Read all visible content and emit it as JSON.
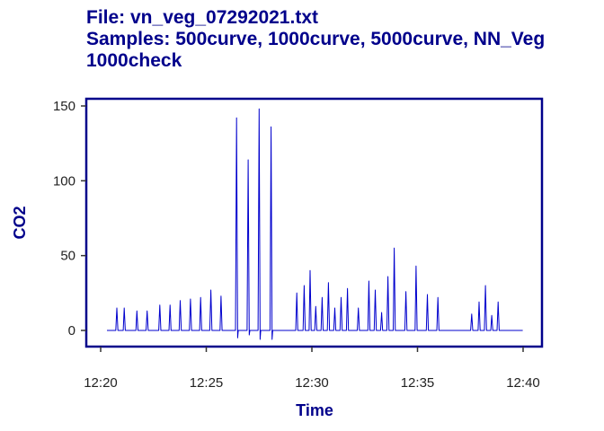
{
  "title": {
    "line1": "File:  vn_veg_07292021.txt",
    "line2": "Samples: 500curve, 1000curve, 5000curve, NN_Veg",
    "line3": "1000check"
  },
  "colors": {
    "title": "#00008b",
    "line": "#0000cd",
    "frame": "#00008b"
  },
  "chart_data": {
    "type": "line",
    "title": "File:  vn_veg_07292021.txt Samples: 500curve, 1000curve, 5000curve, NN_Veg 1000check",
    "xlabel": "Time",
    "ylabel": "CO2",
    "xlim": [
      "12:20",
      "12:40"
    ],
    "ylim": [
      -12,
      152
    ],
    "x_ticks": [
      "12:20",
      "12:25",
      "12:30",
      "12:35",
      "12:40"
    ],
    "y_ticks": [
      0,
      50,
      100,
      150
    ],
    "baseline": 0,
    "grid": false,
    "legend": "none",
    "x_start": "12:20:18",
    "x_end": "12:39:59",
    "peaks": [
      {
        "time": "12:20:46",
        "value": 15
      },
      {
        "time": "12:21:07",
        "value": 15
      },
      {
        "time": "12:21:43",
        "value": 13
      },
      {
        "time": "12:22:12",
        "value": 13
      },
      {
        "time": "12:22:48",
        "value": 17
      },
      {
        "time": "12:23:17",
        "value": 17
      },
      {
        "time": "12:23:46",
        "value": 20
      },
      {
        "time": "12:24:15",
        "value": 21
      },
      {
        "time": "12:24:44",
        "value": 22
      },
      {
        "time": "12:25:13",
        "value": 27
      },
      {
        "time": "12:25:42",
        "value": 23
      },
      {
        "time": "12:26:26",
        "value": 142,
        "dip": -5
      },
      {
        "time": "12:26:59",
        "value": 114,
        "dip": -3
      },
      {
        "time": "12:27:30",
        "value": 148,
        "dip": -6
      },
      {
        "time": "12:28:04",
        "value": 136,
        "dip": -6
      },
      {
        "time": "12:29:17",
        "value": 25
      },
      {
        "time": "12:29:38",
        "value": 30
      },
      {
        "time": "12:29:55",
        "value": 40
      },
      {
        "time": "12:30:11",
        "value": 16
      },
      {
        "time": "12:30:29",
        "value": 22
      },
      {
        "time": "12:30:47",
        "value": 32
      },
      {
        "time": "12:31:05",
        "value": 15
      },
      {
        "time": "12:31:23",
        "value": 22
      },
      {
        "time": "12:31:41",
        "value": 28
      },
      {
        "time": "12:32:12",
        "value": 15
      },
      {
        "time": "12:32:42",
        "value": 33
      },
      {
        "time": "12:33:00",
        "value": 27
      },
      {
        "time": "12:33:18",
        "value": 12
      },
      {
        "time": "12:33:36",
        "value": 36
      },
      {
        "time": "12:33:54",
        "value": 55
      },
      {
        "time": "12:34:27",
        "value": 26
      },
      {
        "time": "12:34:56",
        "value": 43
      },
      {
        "time": "12:35:28",
        "value": 24
      },
      {
        "time": "12:35:58",
        "value": 22
      },
      {
        "time": "12:37:34",
        "value": 11
      },
      {
        "time": "12:37:55",
        "value": 19
      },
      {
        "time": "12:38:13",
        "value": 30
      },
      {
        "time": "12:38:31",
        "value": 10
      },
      {
        "time": "12:38:49",
        "value": 19
      }
    ]
  }
}
